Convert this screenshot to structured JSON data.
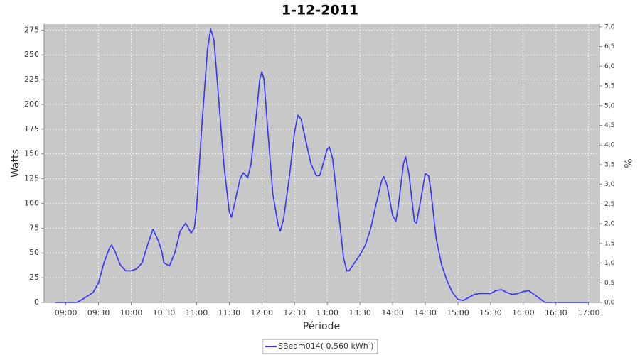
{
  "chart_data": {
    "type": "line",
    "title": "1-12-2011",
    "x_label": "Période",
    "y_label": "Watts",
    "y2_label": "%",
    "x": [
      "08:50",
      "09:10",
      "09:15",
      "09:25",
      "09:30",
      "09:35",
      "09:40",
      "09:42",
      "09:45",
      "09:50",
      "09:55",
      "10:00",
      "10:05",
      "10:10",
      "10:15",
      "10:20",
      "10:25",
      "10:28",
      "10:30",
      "10:35",
      "10:40",
      "10:45",
      "10:50",
      "10:55",
      "10:58",
      "11:00",
      "11:05",
      "11:10",
      "11:13",
      "11:16",
      "11:20",
      "11:25",
      "11:30",
      "11:32",
      "11:35",
      "11:40",
      "11:43",
      "11:47",
      "11:50",
      "11:55",
      "11:58",
      "12:00",
      "12:02",
      "12:05",
      "12:10",
      "12:15",
      "12:17",
      "12:20",
      "12:25",
      "12:30",
      "12:33",
      "12:36",
      "12:40",
      "12:45",
      "12:50",
      "12:53",
      "12:55",
      "13:00",
      "13:02",
      "13:05",
      "13:10",
      "13:15",
      "13:18",
      "13:20",
      "13:25",
      "13:30",
      "13:35",
      "13:40",
      "13:45",
      "13:50",
      "13:52",
      "13:55",
      "14:00",
      "14:03",
      "14:05",
      "14:10",
      "14:12",
      "14:15",
      "14:20",
      "14:22",
      "14:25",
      "14:30",
      "14:33",
      "14:35",
      "14:40",
      "14:45",
      "14:50",
      "14:55",
      "15:00",
      "15:05",
      "15:10",
      "15:15",
      "15:20",
      "15:30",
      "15:35",
      "15:40",
      "15:45",
      "15:50",
      "15:55",
      "16:00",
      "16:05",
      "16:10",
      "16:15",
      "16:20",
      "17:00"
    ],
    "series": [
      {
        "name": "SBeam014( 0,560 kWh )",
        "color": "#3333ff",
        "values": [
          0,
          0,
          3,
          10,
          20,
          40,
          55,
          58,
          52,
          38,
          32,
          32,
          34,
          40,
          58,
          74,
          62,
          52,
          40,
          37,
          50,
          72,
          80,
          70,
          75,
          95,
          180,
          255,
          276,
          265,
          210,
          140,
          92,
          86,
          100,
          125,
          131,
          126,
          140,
          190,
          225,
          233,
          225,
          180,
          110,
          78,
          72,
          85,
          125,
          172,
          189,
          185,
          165,
          140,
          128,
          128,
          135,
          155,
          157,
          145,
          95,
          45,
          32,
          32,
          40,
          48,
          58,
          75,
          100,
          123,
          127,
          118,
          88,
          82,
          95,
          140,
          147,
          130,
          82,
          80,
          98,
          130,
          128,
          115,
          65,
          38,
          22,
          10,
          3,
          2,
          5,
          8,
          9,
          9,
          12,
          13,
          10,
          8,
          9,
          11,
          12,
          8,
          4,
          0,
          0
        ]
      }
    ],
    "xlim": [
      "08:40",
      "17:10"
    ],
    "xticks": [
      "09:00",
      "09:30",
      "10:00",
      "10:30",
      "11:00",
      "11:30",
      "12:00",
      "12:30",
      "13:00",
      "13:30",
      "14:00",
      "14:30",
      "15:00",
      "15:30",
      "16:00",
      "16:30",
      "17:00"
    ],
    "ylim": [
      0,
      281
    ],
    "yticks": [
      0,
      25,
      50,
      75,
      100,
      125,
      150,
      175,
      200,
      225,
      250,
      275
    ],
    "y2lim": [
      0,
      7.07
    ],
    "y2ticks": [
      {
        "value": 0,
        "label": "0,0"
      },
      {
        "value": 0.5,
        "label": "0,5"
      },
      {
        "value": 1,
        "label": "1,0"
      },
      {
        "value": 1.5,
        "label": "1,5"
      },
      {
        "value": 2,
        "label": "2,0"
      },
      {
        "value": 2.5,
        "label": "2,5"
      },
      {
        "value": 3,
        "label": "3,0"
      },
      {
        "value": 3.5,
        "label": "3,5"
      },
      {
        "value": 4,
        "label": "4,0"
      },
      {
        "value": 4.5,
        "label": "4,5"
      },
      {
        "value": 5,
        "label": "5,0"
      },
      {
        "value": 5.5,
        "label": "5,5"
      },
      {
        "value": 6,
        "label": "6,0"
      },
      {
        "value": 6.5,
        "label": "6,5"
      },
      {
        "value": 7,
        "label": "7,0"
      }
    ],
    "grid": true,
    "legend": "bottom"
  }
}
